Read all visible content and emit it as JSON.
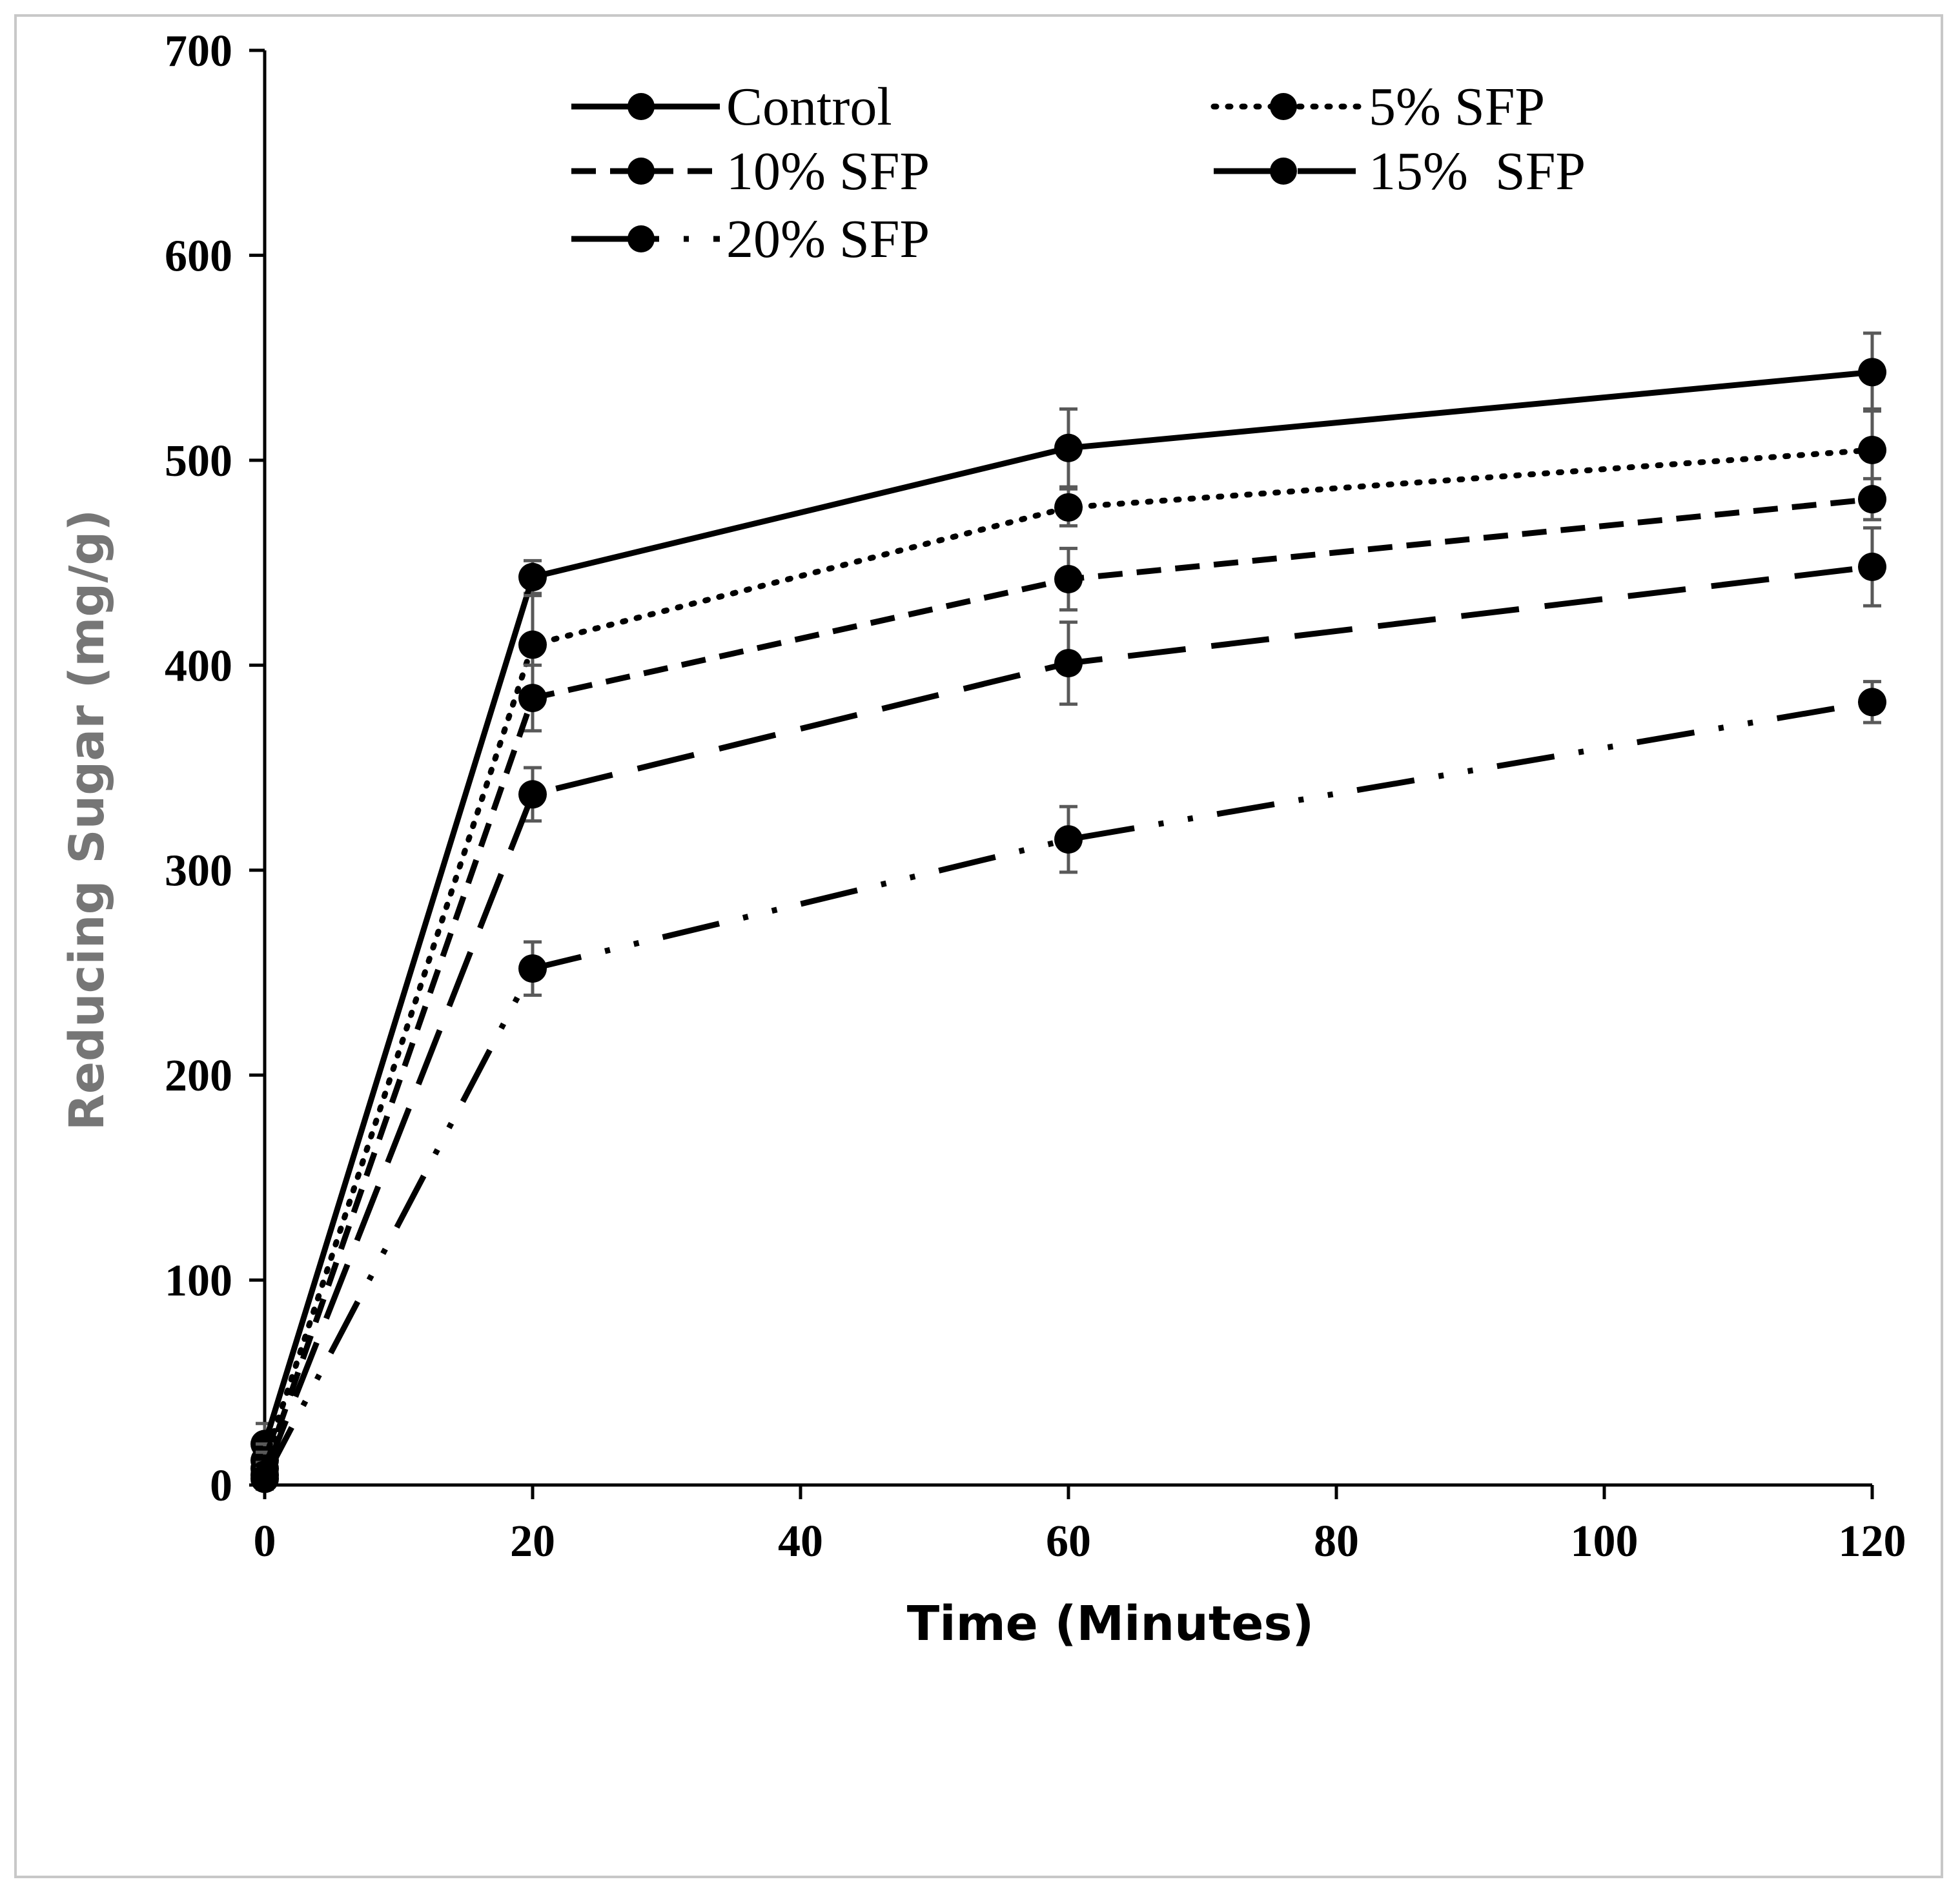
{
  "chart_data": {
    "type": "line",
    "title": "",
    "xlabel": "Time (Minutes)",
    "ylabel": "Reducing Sugar (mg/g)",
    "xlim": [
      0,
      120
    ],
    "ylim": [
      0,
      700
    ],
    "xticks": [
      "0",
      "20",
      "40",
      "60",
      "80",
      "100",
      "120"
    ],
    "yticks": [
      "0",
      "100",
      "200",
      "300",
      "400",
      "500",
      "600",
      "700"
    ],
    "grid": false,
    "legend_position": "top",
    "x": [
      0,
      20,
      60,
      120
    ],
    "series": [
      {
        "name": "Control",
        "style": "solid",
        "values": [
          20,
          443,
          506,
          543
        ],
        "errors": [
          10,
          8,
          19,
          19
        ]
      },
      {
        "name": "5% SFP",
        "style": "dotted",
        "values": [
          12,
          410,
          477,
          505
        ],
        "errors": [
          8,
          24,
          9,
          20
        ]
      },
      {
        "name": "10% SFP",
        "style": "dashed",
        "values": [
          8,
          384,
          442,
          481
        ],
        "errors": [
          8,
          16,
          15,
          10
        ]
      },
      {
        "name": "15%  SFP",
        "style": "longdash",
        "values": [
          5,
          337,
          401,
          448
        ],
        "errors": [
          6,
          13,
          20,
          19
        ]
      },
      {
        "name": "20% SFP",
        "style": "dashdotdot",
        "values": [
          3,
          252,
          315,
          382
        ],
        "errors": [
          5,
          13,
          16,
          10
        ]
      }
    ],
    "colors": {
      "line": "#000000",
      "errorbar": "#595959",
      "ylabel": "#767676"
    }
  }
}
